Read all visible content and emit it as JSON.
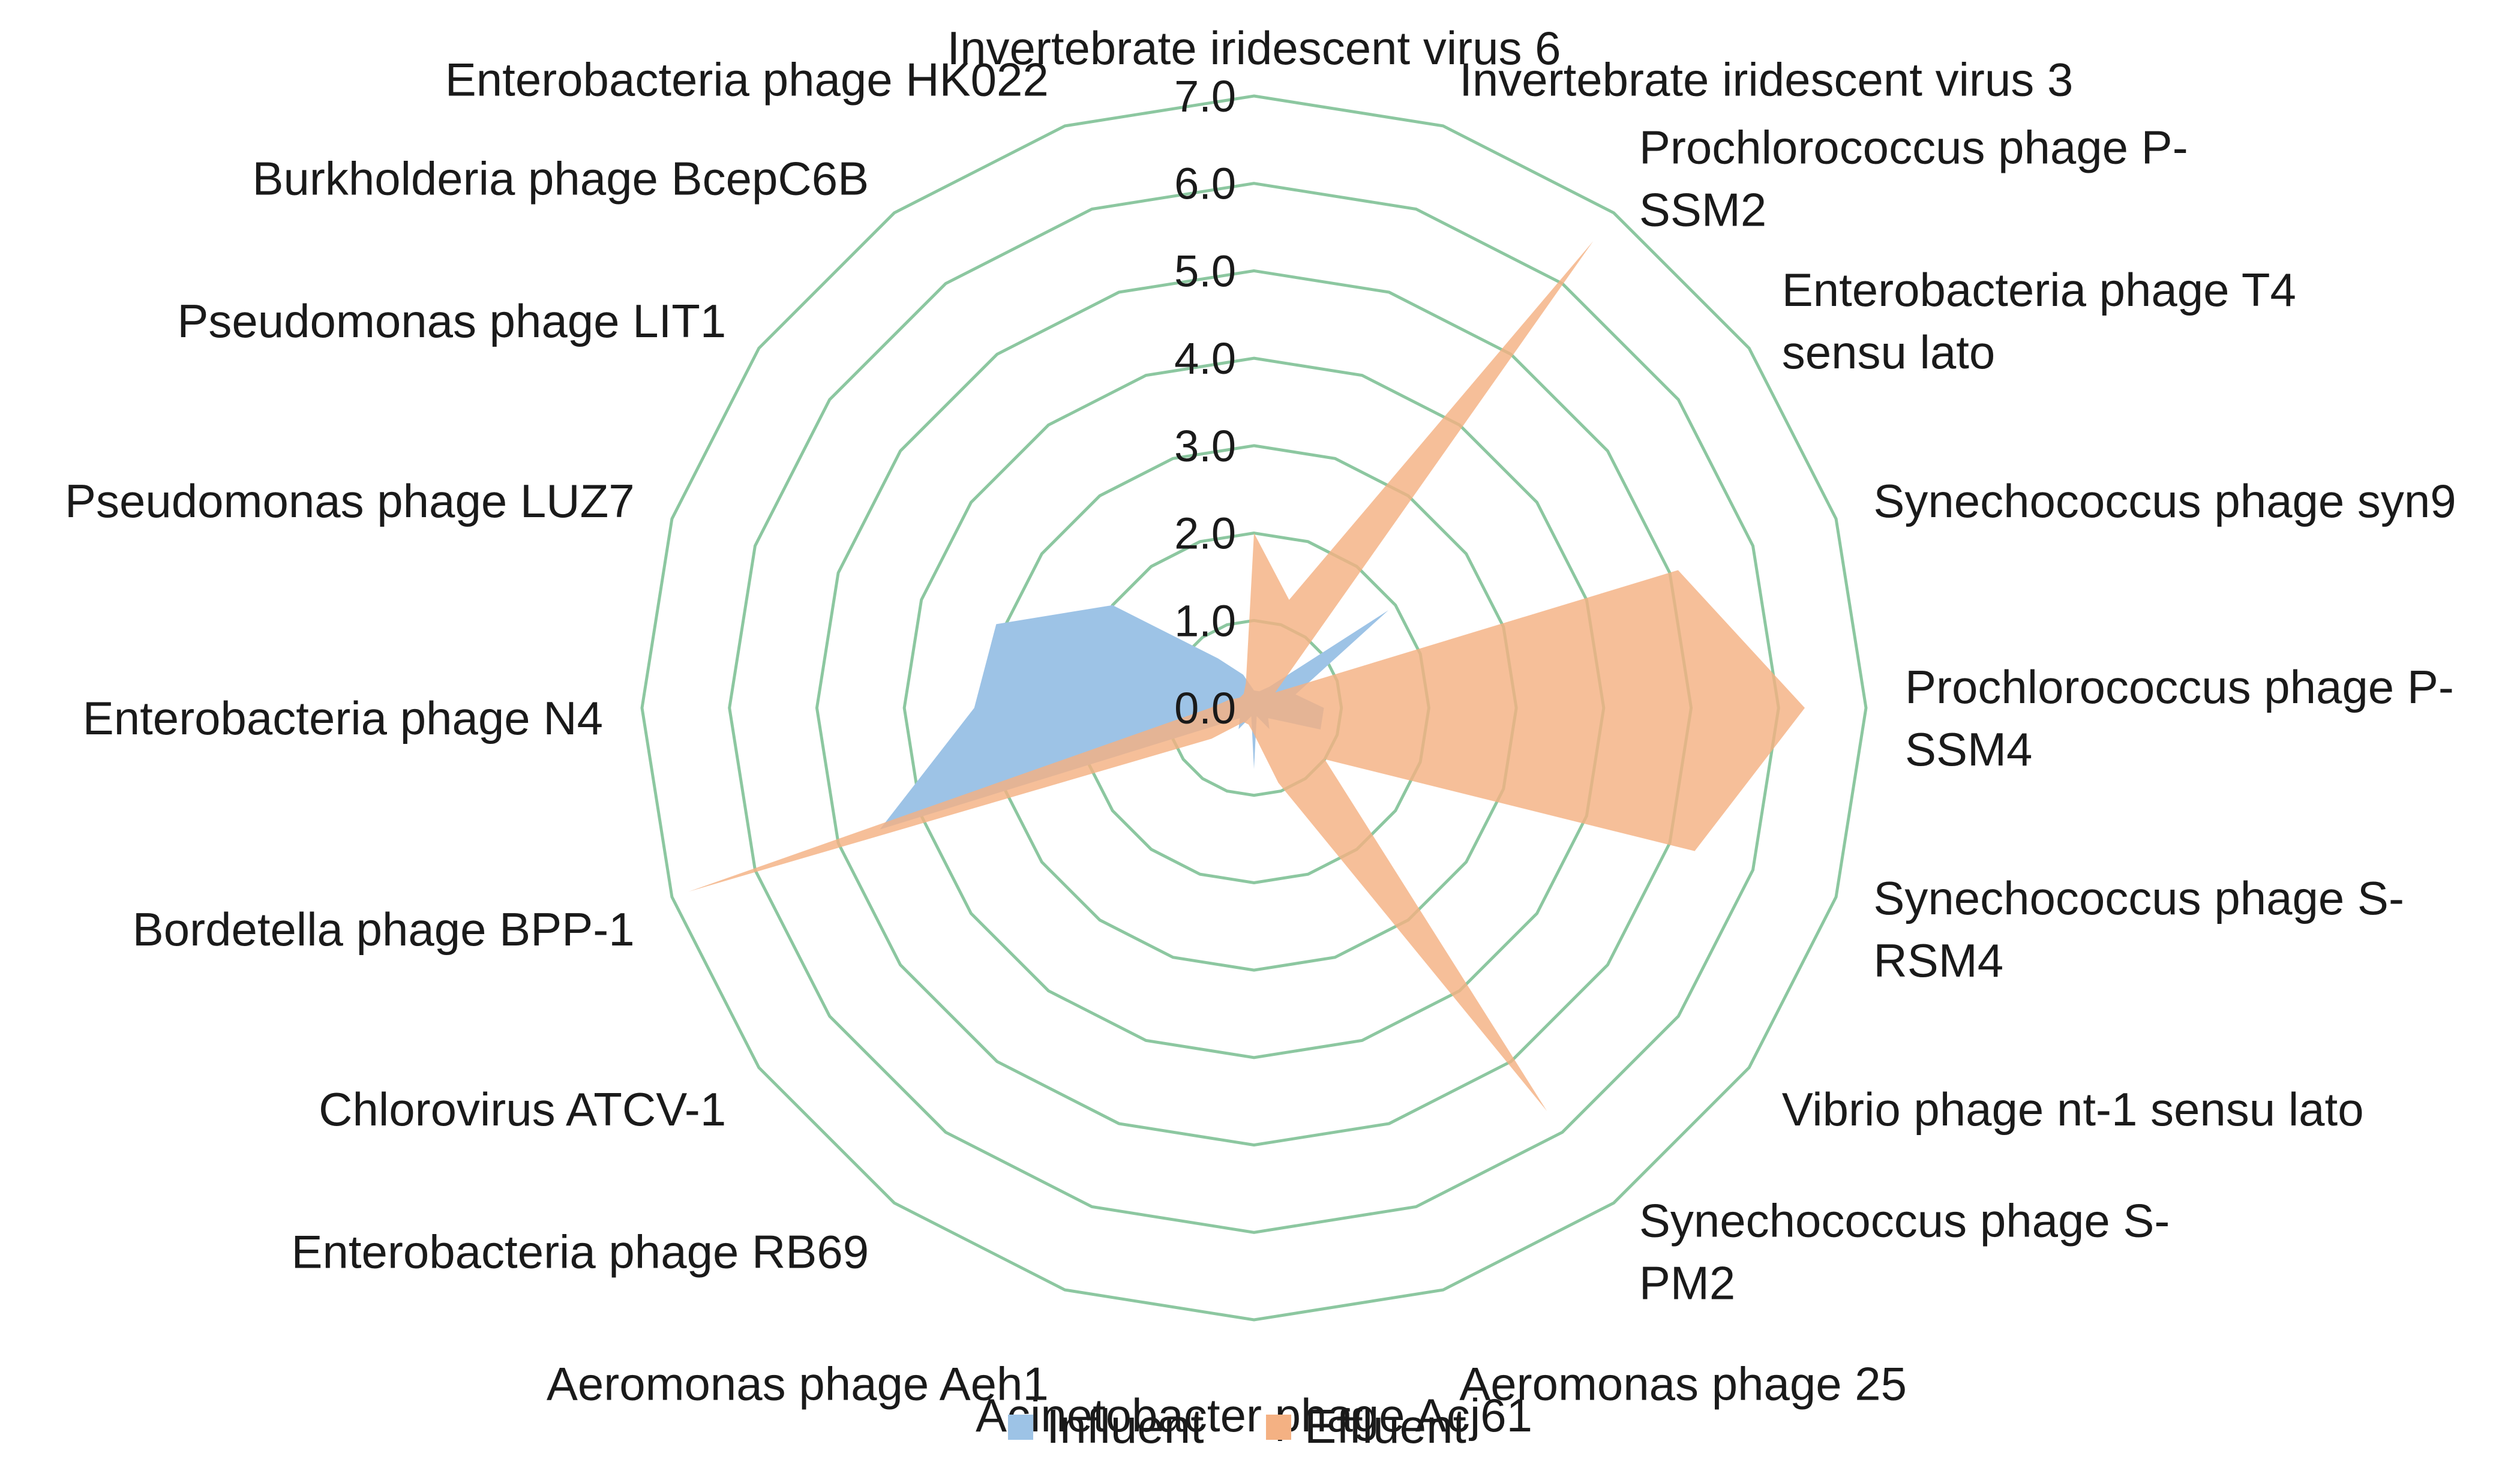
{
  "chart_data": {
    "type": "radar",
    "title": "",
    "rlim": [
      0,
      7
    ],
    "ticks": [
      "0.0",
      "1.0",
      "2.0",
      "3.0",
      "4.0",
      "5.0",
      "6.0",
      "7.0"
    ],
    "grid": true,
    "legend_position": "bottom",
    "categories": [
      "Invertebrate iridescent virus 6",
      "Invertebrate iridescent virus 3",
      "Prochlorococcus phage P-SSM2",
      "Enterobacteria phage T4 sensu lato",
      "Synechococcus phage syn9",
      "Prochlorococcus phage P-SSM4",
      "Synechococcus phage S-RSM4",
      "Vibrio phage nt-1 sensu lato",
      "Synechococcus phage S-PM2",
      "Aeromonas phage 25",
      "Acinetobacter phage Acj61",
      "Aeromonas phage Aeh1",
      "Enterobacteria phage RB69",
      "Chlorovirus ATCV-1",
      "Bordetella phage BPP-1",
      "Enterobacteria phage N4",
      "Pseudomonas phage LUZ7",
      "Pseudomonas phage LIT1",
      "Burkholderia phage BcepC6B",
      "Enterobacteria phage HK022"
    ],
    "category_label_lines": [
      [
        "Invertebrate iridescent virus 6"
      ],
      [
        "Invertebrate iridescent virus 3"
      ],
      [
        "Prochlorococcus phage P-",
        "SSM2"
      ],
      [
        "Enterobacteria phage T4",
        "sensu lato"
      ],
      [
        "Synechococcus phage syn9"
      ],
      [
        "Prochlorococcus phage P-",
        "SSM4"
      ],
      [
        "Synechococcus phage S-",
        "RSM4"
      ],
      [
        "Vibrio phage nt-1 sensu lato"
      ],
      [
        "Synechococcus phage S-",
        "PM2"
      ],
      [
        "Aeromonas phage 25"
      ],
      [
        "Acinetobacter phage Acj61"
      ],
      [
        "Aeromonas phage Aeh1"
      ],
      [
        "Enterobacteria phage RB69"
      ],
      [
        "Chlorovirus ATCV-1"
      ],
      [
        "Bordetella phage BPP-1"
      ],
      [
        "Enterobacteria phage N4"
      ],
      [
        "Pseudomonas phage LUZ7"
      ],
      [
        "Pseudomonas phage LIT1"
      ],
      [
        "Burkholderia phage BcepC6B"
      ],
      [
        "Enterobacteria phage HK022"
      ]
    ],
    "series": [
      {
        "name": "Influent",
        "color": "#9dc3e6",
        "values": [
          0.2,
          0.2,
          0.3,
          1.9,
          0.5,
          0.8,
          0.8,
          0.2,
          0.3,
          0.1,
          0.7,
          0.1,
          0.3,
          0.2,
          4.5,
          3.2,
          3.1,
          2.0,
          0.7,
          0.4
        ]
      },
      {
        "name": "Effluent",
        "color": "#f4b183",
        "values": [
          2.0,
          1.3,
          6.6,
          0.3,
          5.1,
          6.3,
          5.3,
          1.0,
          5.7,
          0.9,
          0.3,
          0.2,
          0.2,
          0.6,
          6.8,
          0.5,
          0.3,
          0.2,
          0.2,
          0.3
        ]
      }
    ],
    "grid_color": "#8cc7a0"
  }
}
